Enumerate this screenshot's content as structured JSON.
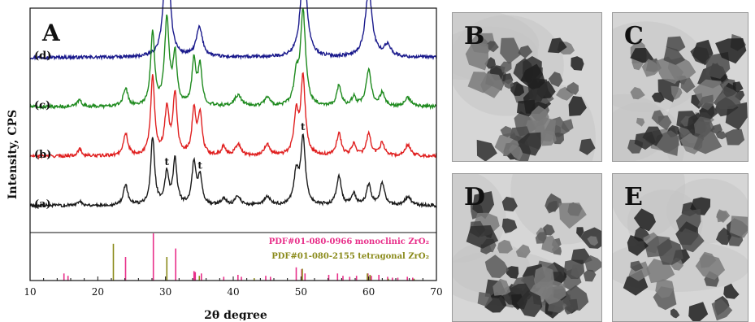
{
  "panel_labels": {
    "xrd": "A",
    "tem": [
      "B",
      "C",
      "D",
      "E"
    ]
  },
  "chart_data": {
    "type": "line",
    "xlabel": "2θ degree",
    "ylabel": "Intensity, CPS",
    "xlim": [
      10,
      70
    ],
    "xticks": [
      10,
      20,
      30,
      40,
      50,
      60,
      70
    ],
    "y_ticks_shown": false,
    "grid": false,
    "phase_marker": "t",
    "phase_marker_positions": [
      30.2,
      35.1,
      50.3
    ],
    "series": [
      {
        "name": "(d)",
        "color": "#1a1a8c",
        "baseline": 0.78,
        "peaks": [
          [
            30.2,
            0.62,
            0.45
          ],
          [
            35.0,
            0.13,
            0.55
          ],
          [
            50.4,
            0.42,
            0.55
          ],
          [
            60.0,
            0.3,
            0.6
          ],
          [
            62.8,
            0.05,
            0.6
          ]
        ]
      },
      {
        "name": "(c)",
        "color": "#1e8a1e",
        "baseline": 0.56,
        "peaks": [
          [
            17.3,
            0.03,
            0.4
          ],
          [
            24.1,
            0.08,
            0.4
          ],
          [
            28.1,
            0.33,
            0.35
          ],
          [
            30.2,
            0.38,
            0.4
          ],
          [
            31.4,
            0.22,
            0.35
          ],
          [
            34.2,
            0.2,
            0.35
          ],
          [
            35.1,
            0.17,
            0.35
          ],
          [
            40.7,
            0.05,
            0.6
          ],
          [
            45.0,
            0.04,
            0.5
          ],
          [
            49.3,
            0.12,
            0.4
          ],
          [
            50.3,
            0.42,
            0.45
          ],
          [
            55.6,
            0.09,
            0.4
          ],
          [
            57.8,
            0.04,
            0.4
          ],
          [
            60.0,
            0.16,
            0.45
          ],
          [
            62.0,
            0.06,
            0.4
          ],
          [
            65.8,
            0.04,
            0.5
          ]
        ]
      },
      {
        "name": "(b)",
        "color": "#e02020",
        "baseline": 0.34,
        "peaks": [
          [
            17.3,
            0.03,
            0.4
          ],
          [
            24.1,
            0.1,
            0.4
          ],
          [
            28.1,
            0.35,
            0.35
          ],
          [
            30.2,
            0.2,
            0.4
          ],
          [
            31.4,
            0.27,
            0.35
          ],
          [
            34.2,
            0.2,
            0.35
          ],
          [
            35.1,
            0.18,
            0.35
          ],
          [
            38.6,
            0.04,
            0.4
          ],
          [
            40.7,
            0.05,
            0.5
          ],
          [
            45.0,
            0.05,
            0.5
          ],
          [
            49.3,
            0.18,
            0.4
          ],
          [
            50.3,
            0.34,
            0.4
          ],
          [
            55.6,
            0.1,
            0.4
          ],
          [
            57.8,
            0.05,
            0.4
          ],
          [
            60.0,
            0.1,
            0.4
          ],
          [
            62.0,
            0.06,
            0.4
          ],
          [
            65.8,
            0.05,
            0.5
          ]
        ]
      },
      {
        "name": "(a)",
        "color": "#1a1a1a",
        "baseline": 0.12,
        "peaks": [
          [
            17.3,
            0.02,
            0.4
          ],
          [
            24.1,
            0.09,
            0.4
          ],
          [
            28.1,
            0.3,
            0.35
          ],
          [
            30.2,
            0.14,
            0.35
          ],
          [
            31.4,
            0.2,
            0.35
          ],
          [
            34.2,
            0.19,
            0.35
          ],
          [
            35.1,
            0.12,
            0.35
          ],
          [
            38.6,
            0.03,
            0.4
          ],
          [
            40.7,
            0.04,
            0.5
          ],
          [
            45.0,
            0.04,
            0.5
          ],
          [
            49.3,
            0.14,
            0.4
          ],
          [
            50.3,
            0.3,
            0.4
          ],
          [
            55.6,
            0.13,
            0.4
          ],
          [
            57.8,
            0.05,
            0.4
          ],
          [
            60.0,
            0.09,
            0.4
          ],
          [
            62.0,
            0.1,
            0.4
          ],
          [
            65.8,
            0.04,
            0.5
          ]
        ]
      }
    ],
    "reference_patterns": [
      {
        "name": "PDF#01-080-0966 monoclinic ZrO₂",
        "color": "#e8308a",
        "lines": [
          [
            15.0,
            0.15
          ],
          [
            15.6,
            0.1
          ],
          [
            24.1,
            0.5
          ],
          [
            28.2,
            1.0
          ],
          [
            31.5,
            0.68
          ],
          [
            34.2,
            0.2
          ],
          [
            34.4,
            0.18
          ],
          [
            35.3,
            0.15
          ],
          [
            38.6,
            0.08
          ],
          [
            40.7,
            0.12
          ],
          [
            41.2,
            0.08
          ],
          [
            44.8,
            0.1
          ],
          [
            45.5,
            0.08
          ],
          [
            49.3,
            0.28
          ],
          [
            50.1,
            0.24
          ],
          [
            50.6,
            0.15
          ],
          [
            54.1,
            0.12
          ],
          [
            55.4,
            0.15
          ],
          [
            56.2,
            0.1
          ],
          [
            57.2,
            0.08
          ],
          [
            58.2,
            0.1
          ],
          [
            59.9,
            0.15
          ],
          [
            60.4,
            0.1
          ],
          [
            61.5,
            0.12
          ],
          [
            62.8,
            0.08
          ],
          [
            63.5,
            0.06
          ],
          [
            64.3,
            0.06
          ],
          [
            65.7,
            0.08
          ],
          [
            66.5,
            0.06
          ]
        ]
      },
      {
        "name": "PDF#01-080-2155 tetragonal ZrO₂",
        "color": "#8a8a1a",
        "lines": [
          [
            22.3,
            0.78
          ],
          [
            30.2,
            0.5
          ],
          [
            35.0,
            0.1
          ],
          [
            43.1,
            0.05
          ],
          [
            50.2,
            0.25
          ],
          [
            59.8,
            0.15
          ],
          [
            60.2,
            0.12
          ],
          [
            62.9,
            0.04
          ],
          [
            66.7,
            0.04
          ]
        ]
      }
    ]
  },
  "colors": {
    "tem_background": "#d6d6d6",
    "particle_dark": "#1e1e1e",
    "particle_mid": "#4a4a4a",
    "particle_light": "#7a7a7a"
  }
}
